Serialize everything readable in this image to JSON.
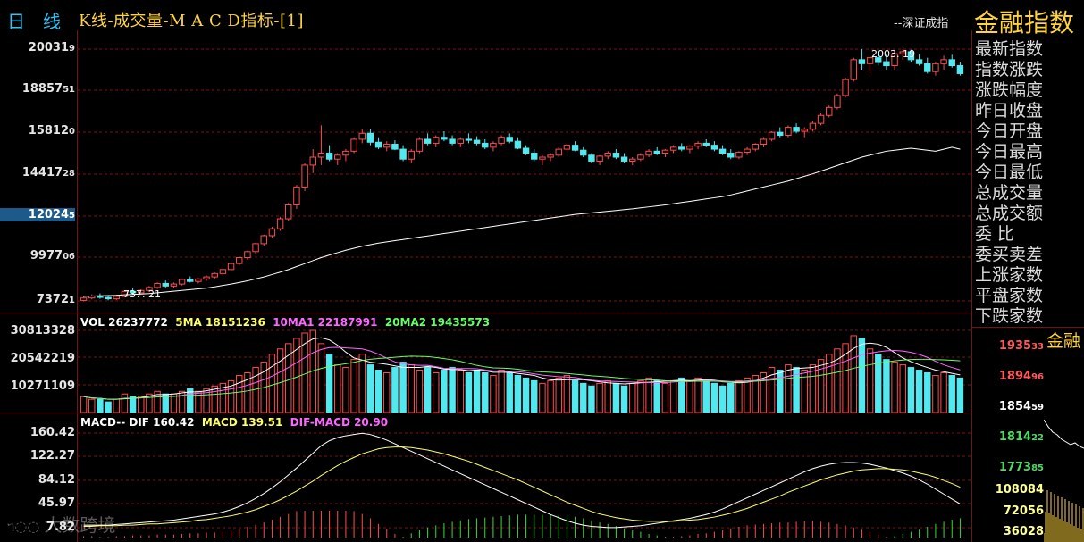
{
  "header": {
    "tab_period": "日",
    "tab_line": "线",
    "title": "K线-成交量-M A C D指标-[1]",
    "subtitle": "--深证成指",
    "instrument": "金融指数"
  },
  "price_axis": {
    "ticks": [
      {
        "main": "20031",
        "small": "9",
        "value": 2003.19
      },
      {
        "main": "18857",
        "small": "51",
        "value": 1885.751
      },
      {
        "main": "15812",
        "small": "0",
        "value": 1581.2
      },
      {
        "main": "14417",
        "small": "28",
        "value": 1441.728
      },
      {
        "main": "12024",
        "small": "5",
        "value": 1202.45
      },
      {
        "main": "9977",
        "small": "06",
        "value": 997.706
      },
      {
        "main": "7372",
        "small": "1",
        "value": 737.21
      }
    ],
    "highlighted_value": "12024"
  },
  "annotations": {
    "high_label": "2003. 19",
    "low_label": "737. 21"
  },
  "info_panel": {
    "items": [
      "最新指数",
      "指数涨跌",
      "涨跌幅度",
      "昨日收盘",
      "今日开盘",
      "今日最高",
      "今日最低",
      "总成交量",
      "总成交额",
      "委          比",
      "委买卖差",
      "上涨家数",
      "平盘家数",
      "下跌家数"
    ]
  },
  "volume_legend": {
    "vol": "VOL 26237772",
    "ma5": "5MA 18151236",
    "ma10": "10MA1 22187991",
    "ma20": "20MA2 19435573"
  },
  "volume_axis": [
    "30813328",
    "20542219",
    "10271109"
  ],
  "macd_legend": {
    "label": "MACD-- DIF 160.42",
    "macd": "MACD 139.51",
    "diff": "DIF-MACD 20.90"
  },
  "macd_axis": [
    "160.42",
    "122.27",
    "84.12",
    "45.97",
    "7.82"
  ],
  "right_panel": {
    "title": "金融",
    "prices": [
      {
        "main": "1935",
        "small": "33",
        "color": "#ff5a5a"
      },
      {
        "main": "1894",
        "small": "96",
        "color": "#ff5a5a"
      },
      {
        "main": "1854",
        "small": "59",
        "color": "#ffffff"
      },
      {
        "main": "1814",
        "small": "22",
        "color": "#4cd964"
      },
      {
        "main": "1773",
        "small": "85",
        "color": "#4cd964"
      }
    ],
    "volumes": [
      "108084",
      "72056",
      "36028"
    ]
  },
  "watermark": "大数跨境",
  "colors": {
    "up": "#ff4d4d",
    "down": "#52e8f0",
    "ma5": "#ffffff",
    "ma10": "#ff66ff",
    "ma20": "#66ff66",
    "axis_text": "#e6e6e6",
    "frame": "#7a1212",
    "dif": "#ffffff",
    "dea": "#ffff66"
  },
  "chart_data": {
    "type": "candlestick",
    "title": "K线-成交量-M A C D指标-[1]",
    "price_range": [
      737.21,
      2003.19
    ],
    "price_ohlc": [
      [
        740,
        760,
        735,
        752
      ],
      [
        752,
        770,
        745,
        762
      ],
      [
        762,
        775,
        748,
        755
      ],
      [
        755,
        765,
        740,
        748
      ],
      [
        748,
        768,
        742,
        760
      ],
      [
        760,
        790,
        755,
        785
      ],
      [
        785,
        800,
        770,
        778
      ],
      [
        778,
        795,
        770,
        790
      ],
      [
        790,
        812,
        782,
        805
      ],
      [
        805,
        830,
        798,
        825
      ],
      [
        825,
        840,
        805,
        812
      ],
      [
        812,
        830,
        800,
        822
      ],
      [
        822,
        850,
        815,
        845
      ],
      [
        845,
        860,
        830,
        835
      ],
      [
        835,
        852,
        825,
        848
      ],
      [
        848,
        865,
        838,
        858
      ],
      [
        858,
        880,
        850,
        875
      ],
      [
        875,
        900,
        868,
        895
      ],
      [
        895,
        930,
        885,
        925
      ],
      [
        925,
        960,
        915,
        955
      ],
      [
        955,
        990,
        945,
        985
      ],
      [
        985,
        1030,
        975,
        1025
      ],
      [
        1025,
        1070,
        1015,
        1065
      ],
      [
        1065,
        1110,
        1055,
        1100
      ],
      [
        1100,
        1160,
        1090,
        1150
      ],
      [
        1150,
        1230,
        1140,
        1220
      ],
      [
        1220,
        1320,
        1200,
        1310
      ],
      [
        1310,
        1430,
        1290,
        1420
      ],
      [
        1420,
        1500,
        1380,
        1460
      ],
      [
        1460,
        1620,
        1420,
        1480
      ],
      [
        1480,
        1520,
        1440,
        1450
      ],
      [
        1450,
        1480,
        1420,
        1470
      ],
      [
        1470,
        1500,
        1440,
        1490
      ],
      [
        1490,
        1560,
        1480,
        1550
      ],
      [
        1550,
        1600,
        1530,
        1580
      ],
      [
        1580,
        1600,
        1520,
        1535
      ],
      [
        1535,
        1560,
        1500,
        1510
      ],
      [
        1510,
        1540,
        1490,
        1525
      ],
      [
        1525,
        1545,
        1495,
        1500
      ],
      [
        1500,
        1520,
        1440,
        1450
      ],
      [
        1450,
        1500,
        1430,
        1490
      ],
      [
        1490,
        1560,
        1480,
        1550
      ],
      [
        1550,
        1580,
        1520,
        1530
      ],
      [
        1530,
        1570,
        1510,
        1560
      ],
      [
        1560,
        1590,
        1540,
        1550
      ],
      [
        1550,
        1570,
        1520,
        1530
      ],
      [
        1530,
        1560,
        1510,
        1550
      ],
      [
        1550,
        1580,
        1530,
        1545
      ],
      [
        1545,
        1565,
        1520,
        1530
      ],
      [
        1530,
        1550,
        1500,
        1510
      ],
      [
        1510,
        1540,
        1490,
        1530
      ],
      [
        1530,
        1570,
        1520,
        1560
      ],
      [
        1560,
        1580,
        1530,
        1540
      ],
      [
        1540,
        1560,
        1500,
        1505
      ],
      [
        1505,
        1520,
        1470,
        1480
      ],
      [
        1480,
        1500,
        1440,
        1450
      ],
      [
        1450,
        1470,
        1420,
        1460
      ],
      [
        1460,
        1480,
        1440,
        1470
      ],
      [
        1470,
        1510,
        1460,
        1500
      ],
      [
        1500,
        1530,
        1490,
        1520
      ],
      [
        1520,
        1540,
        1490,
        1495
      ],
      [
        1495,
        1510,
        1460,
        1470
      ],
      [
        1470,
        1480,
        1430,
        1440
      ],
      [
        1440,
        1470,
        1420,
        1465
      ],
      [
        1465,
        1490,
        1450,
        1480
      ],
      [
        1480,
        1500,
        1450,
        1460
      ],
      [
        1460,
        1480,
        1430,
        1440
      ],
      [
        1440,
        1460,
        1420,
        1450
      ],
      [
        1450,
        1480,
        1440,
        1470
      ],
      [
        1470,
        1500,
        1460,
        1490
      ],
      [
        1490,
        1510,
        1470,
        1480
      ],
      [
        1480,
        1500,
        1460,
        1495
      ],
      [
        1495,
        1520,
        1480,
        1510
      ],
      [
        1510,
        1530,
        1490,
        1500
      ],
      [
        1500,
        1520,
        1480,
        1515
      ],
      [
        1515,
        1540,
        1500,
        1530
      ],
      [
        1530,
        1550,
        1510,
        1520
      ],
      [
        1520,
        1540,
        1490,
        1500
      ],
      [
        1500,
        1520,
        1470,
        1480
      ],
      [
        1480,
        1500,
        1450,
        1460
      ],
      [
        1460,
        1490,
        1450,
        1485
      ],
      [
        1485,
        1510,
        1470,
        1500
      ],
      [
        1500,
        1530,
        1490,
        1525
      ],
      [
        1525,
        1560,
        1510,
        1550
      ],
      [
        1550,
        1590,
        1540,
        1585
      ],
      [
        1585,
        1610,
        1560,
        1570
      ],
      [
        1570,
        1620,
        1560,
        1610
      ],
      [
        1610,
        1630,
        1580,
        1590
      ],
      [
        1590,
        1610,
        1560,
        1600
      ],
      [
        1600,
        1640,
        1590,
        1630
      ],
      [
        1630,
        1680,
        1620,
        1670
      ],
      [
        1670,
        1720,
        1660,
        1710
      ],
      [
        1710,
        1780,
        1700,
        1770
      ],
      [
        1770,
        1860,
        1760,
        1850
      ],
      [
        1850,
        1960,
        1840,
        1950
      ],
      [
        1950,
        2003,
        1900,
        1930
      ],
      [
        1930,
        1970,
        1880,
        1960
      ],
      [
        1960,
        1990,
        1920,
        1940
      ],
      [
        1940,
        1980,
        1900,
        1920
      ],
      [
        1920,
        1990,
        1900,
        1980
      ],
      [
        1980,
        2003,
        1950,
        1990
      ],
      [
        1990,
        2000,
        1940,
        1950
      ],
      [
        1950,
        1980,
        1920,
        1930
      ],
      [
        1930,
        1960,
        1880,
        1890
      ],
      [
        1890,
        1940,
        1870,
        1930
      ],
      [
        1930,
        1970,
        1900,
        1950
      ],
      [
        1950,
        1975,
        1910,
        1920
      ],
      [
        1920,
        1940,
        1870,
        1880
      ]
    ],
    "ma_line": [
      760,
      762,
      763,
      764,
      765,
      768,
      770,
      772,
      774,
      778,
      782,
      786,
      790,
      794,
      798,
      802,
      808,
      815,
      822,
      830,
      838,
      848,
      858,
      870,
      882,
      895,
      910,
      925,
      940,
      955,
      968,
      980,
      992,
      1002,
      1012,
      1020,
      1028,
      1034,
      1040,
      1046,
      1052,
      1058,
      1064,
      1070,
      1076,
      1082,
      1088,
      1094,
      1100,
      1106,
      1112,
      1118,
      1124,
      1130,
      1136,
      1142,
      1148,
      1154,
      1160,
      1166,
      1172,
      1176,
      1180,
      1184,
      1188,
      1192,
      1196,
      1200,
      1205,
      1210,
      1215,
      1220,
      1226,
      1232,
      1238,
      1244,
      1250,
      1256,
      1262,
      1270,
      1280,
      1290,
      1300,
      1310,
      1320,
      1330,
      1340,
      1352,
      1364,
      1376,
      1390,
      1404,
      1418,
      1432,
      1446,
      1460,
      1470,
      1480,
      1490,
      1495,
      1500,
      1505,
      1500,
      1495,
      1490,
      1500,
      1510,
      1500
    ],
    "volume": [
      6,
      5,
      5,
      4,
      5,
      7,
      6,
      6,
      7,
      8,
      7,
      7,
      8,
      9,
      8,
      9,
      10,
      11,
      12,
      14,
      15,
      17,
      19,
      22,
      24,
      26,
      28,
      30,
      31,
      26,
      22,
      18,
      17,
      20,
      22,
      18,
      16,
      15,
      17,
      19,
      18,
      16,
      17,
      15,
      16,
      17,
      16,
      15,
      16,
      15,
      14,
      16,
      15,
      14,
      13,
      12,
      11,
      12,
      13,
      14,
      12,
      11,
      10,
      11,
      12,
      11,
      10,
      11,
      12,
      13,
      12,
      11,
      12,
      13,
      12,
      13,
      12,
      11,
      10,
      11,
      12,
      13,
      14,
      15,
      17,
      16,
      18,
      17,
      16,
      18,
      20,
      22,
      24,
      26,
      29,
      28,
      24,
      22,
      20,
      19,
      18,
      17,
      16,
      15,
      14,
      15,
      14,
      13
    ],
    "volume_up": [
      true,
      true,
      false,
      false,
      true,
      true,
      false,
      true,
      true,
      true,
      false,
      true,
      true,
      false,
      true,
      true,
      true,
      true,
      true,
      true,
      true,
      true,
      true,
      true,
      true,
      true,
      true,
      true,
      true,
      true,
      false,
      true,
      true,
      true,
      true,
      false,
      false,
      true,
      false,
      false,
      true,
      true,
      false,
      true,
      false,
      false,
      true,
      false,
      false,
      false,
      true,
      true,
      false,
      false,
      false,
      false,
      true,
      true,
      true,
      true,
      false,
      false,
      false,
      true,
      true,
      false,
      false,
      true,
      true,
      true,
      false,
      true,
      true,
      false,
      true,
      true,
      false,
      false,
      false,
      false,
      true,
      true,
      true,
      true,
      true,
      false,
      true,
      false,
      true,
      true,
      true,
      true,
      true,
      true,
      true,
      false,
      true,
      false,
      false,
      true,
      true,
      false,
      false,
      false,
      true,
      true,
      false,
      false
    ],
    "macd_range": [
      7.82,
      160.42
    ],
    "dif": [
      12,
      12,
      12,
      12,
      13,
      14,
      15,
      16,
      17,
      18,
      19,
      20,
      22,
      24,
      26,
      28,
      30,
      33,
      37,
      42,
      48,
      55,
      63,
      72,
      82,
      93,
      104,
      116,
      128,
      140,
      148,
      153,
      156,
      158,
      160,
      158,
      154,
      149,
      143,
      137,
      131,
      125,
      119,
      113,
      107,
      101,
      95,
      89,
      83,
      77,
      71,
      65,
      59,
      53,
      47,
      41,
      35,
      29,
      24,
      19,
      15,
      12,
      10,
      9,
      8,
      8,
      9,
      10,
      11,
      13,
      15,
      17,
      19,
      21,
      23,
      26,
      29,
      33,
      38,
      44,
      50,
      56,
      62,
      68,
      74,
      80,
      86,
      92,
      98,
      103,
      107,
      110,
      112,
      113,
      113,
      112,
      110,
      107,
      104,
      100,
      96,
      91,
      85,
      78,
      70,
      62,
      54,
      46
    ],
    "dea": [
      10,
      10,
      11,
      11,
      11,
      12,
      12,
      13,
      14,
      14,
      15,
      16,
      17,
      18,
      20,
      21,
      23,
      25,
      27,
      30,
      33,
      37,
      42,
      47,
      53,
      60,
      67,
      75,
      83,
      92,
      100,
      108,
      115,
      121,
      127,
      131,
      135,
      137,
      138,
      138,
      137,
      135,
      133,
      130,
      127,
      123,
      119,
      115,
      110,
      105,
      100,
      95,
      90,
      85,
      79,
      73,
      67,
      61,
      55,
      49,
      44,
      39,
      34,
      30,
      27,
      24,
      22,
      20,
      19,
      18,
      18,
      18,
      18,
      19,
      20,
      21,
      23,
      25,
      28,
      31,
      35,
      39,
      44,
      49,
      54,
      59,
      65,
      70,
      75,
      80,
      85,
      89,
      93,
      96,
      99,
      101,
      102,
      103,
      103,
      102,
      101,
      99,
      96,
      93,
      89,
      84,
      79,
      73
    ],
    "x_count": 108
  }
}
